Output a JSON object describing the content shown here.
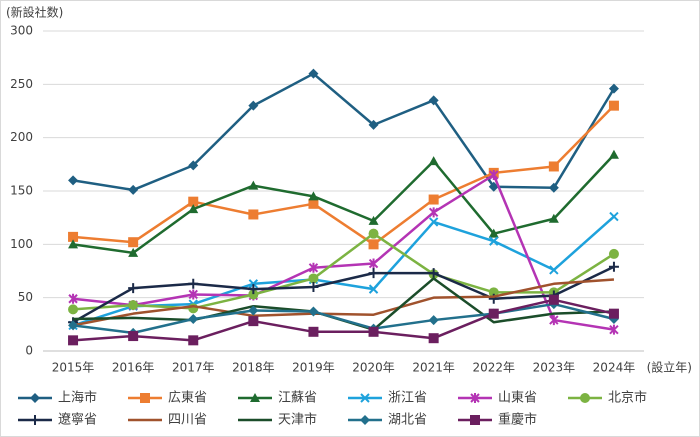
{
  "chart_data": {
    "type": "line",
    "y_label": "(新設社数)",
    "x_label": "(設立年)",
    "categories": [
      "2015年",
      "2016年",
      "2017年",
      "2018年",
      "2019年",
      "2020年",
      "2021年",
      "2022年",
      "2023年",
      "2024年"
    ],
    "ylim": [
      0,
      300
    ],
    "yticks": [
      0,
      50,
      100,
      150,
      200,
      250,
      300
    ],
    "grid": true,
    "legend": "bottom",
    "series": [
      {
        "name": "上海市",
        "color": "#1f5f82",
        "marker": "diamond",
        "values": [
          160,
          151,
          174,
          230,
          260,
          212,
          235,
          154,
          153,
          246
        ]
      },
      {
        "name": "広東省",
        "color": "#ed7d31",
        "marker": "square",
        "values": [
          107,
          102,
          140,
          128,
          138,
          100,
          142,
          167,
          173,
          230
        ]
      },
      {
        "name": "江蘇省",
        "color": "#1f6b2f",
        "marker": "triangle",
        "values": [
          100,
          92,
          133,
          155,
          145,
          122,
          178,
          110,
          124,
          184
        ]
      },
      {
        "name": "浙江省",
        "color": "#1ea2dc",
        "marker": "x",
        "values": [
          24,
          42,
          44,
          63,
          67,
          58,
          121,
          103,
          76,
          126
        ]
      },
      {
        "name": "山東省",
        "color": "#b434b4",
        "marker": "star",
        "values": [
          49,
          43,
          53,
          52,
          78,
          82,
          130,
          165,
          29,
          20
        ]
      },
      {
        "name": "北京市",
        "color": "#7cb342",
        "marker": "circle",
        "values": [
          39,
          43,
          40,
          53,
          68,
          110,
          72,
          55,
          55,
          91
        ]
      },
      {
        "name": "遼寧省",
        "color": "#1b2a48",
        "marker": "plus",
        "values": [
          27,
          59,
          63,
          58,
          60,
          73,
          73,
          49,
          52,
          79
        ]
      },
      {
        "name": "四川省",
        "color": "#a0522d",
        "marker": "none",
        "values": [
          24,
          35,
          42,
          33,
          35,
          34,
          50,
          51,
          63,
          67
        ]
      },
      {
        "name": "天津市",
        "color": "#1b4d2a",
        "marker": "none",
        "values": [
          30,
          31,
          29,
          42,
          37,
          20,
          68,
          27,
          35,
          37
        ]
      },
      {
        "name": "湖北省",
        "color": "#22708c",
        "marker": "diamond",
        "values": [
          24,
          17,
          30,
          38,
          37,
          21,
          29,
          35,
          44,
          30
        ]
      },
      {
        "name": "重慶市",
        "color": "#6b1f5f",
        "marker": "square",
        "values": [
          10,
          14,
          10,
          28,
          18,
          18,
          12,
          35,
          48,
          35
        ]
      }
    ]
  }
}
